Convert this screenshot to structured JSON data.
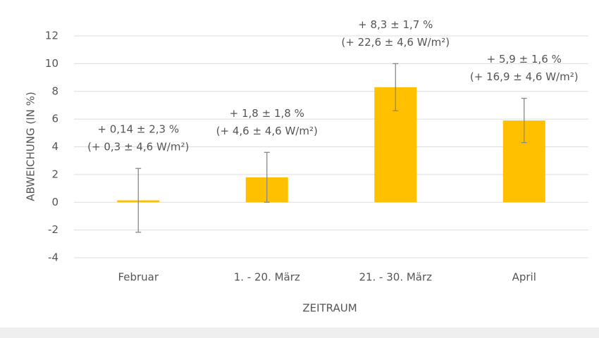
{
  "chart_data": {
    "type": "bar",
    "x_label": "ZEITRAUM",
    "y_label": "ABWEICHUNG (IN %)",
    "categories": [
      "Februar",
      "1. - 20. März",
      "21. - 30. März",
      "April"
    ],
    "values": [
      0.14,
      1.8,
      8.3,
      5.9
    ],
    "errors": [
      2.3,
      1.8,
      1.7,
      1.6
    ],
    "value_labels": [
      "+ 0,14 ± 2,3 %",
      "+ 1,8 ± 1,8 %",
      "+ 8,3 ± 1,7 %",
      "+ 5,9 ± 1,6 %"
    ],
    "secondary_labels": [
      "(+ 0,3 ± 4,6 W/m²)",
      "(+ 4,6 ± 4,6 W/m²)",
      "(+ 22,6 ± 4,6 W/m²)",
      "(+ 16,9 ± 4,6 W/m²)"
    ],
    "color": "#ffc000",
    "error_color": "#888888",
    "ylim": [
      -4,
      12
    ],
    "yticks": [
      -4,
      -2,
      0,
      2,
      4,
      6,
      8,
      10,
      12
    ],
    "grid": true
  }
}
